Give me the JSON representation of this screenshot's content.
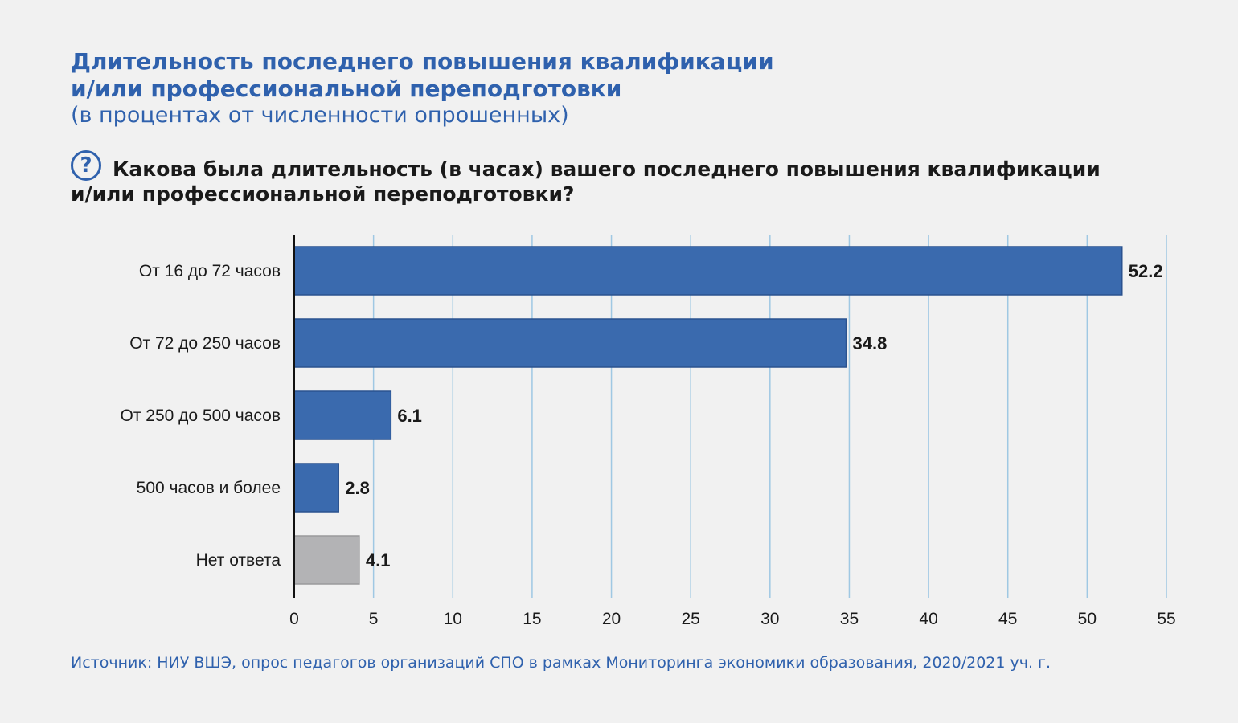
{
  "header": {
    "title_line1": "Длительность последнего повышения квалификации",
    "title_line2": "и/или профессиональной переподготовки",
    "subtitle": "(в процентах от численности опрошенных)",
    "question_icon": "?",
    "question": "Какова была длительность (в часах) вашего последнего повышения квалификации и/или профессиональной переподготовки?"
  },
  "footer": {
    "source": "Источник: НИУ ВШЭ, опрос педагогов организаций СПО в рамках Мониторинга экономики образования, 2020/2021 уч. г."
  },
  "colors": {
    "bar": "#3a6aae",
    "bar_border": "#2a528f",
    "no_answer_bar": "#b3b3b5",
    "no_answer_border": "#9a9a9c",
    "grid": "#9fc8e3",
    "accent": "#2f61ad"
  },
  "chart_data": {
    "type": "bar",
    "orientation": "horizontal",
    "categories": [
      "От 16 до 72 часов",
      "От 72 до 250 часов",
      "От 250 до 500 часов",
      "500 часов и более",
      "Нет ответа"
    ],
    "values": [
      52.2,
      34.8,
      6.1,
      2.8,
      4.1
    ],
    "value_labels": [
      "52.2",
      "34.8",
      "6.1",
      "2.8",
      "4.1"
    ],
    "highlight_gray": [
      "Нет ответа"
    ],
    "xlim": [
      0,
      55
    ],
    "xticks": [
      0,
      5,
      10,
      15,
      20,
      25,
      30,
      35,
      40,
      45,
      50,
      55
    ],
    "grid": "vertical",
    "legend": "none"
  }
}
